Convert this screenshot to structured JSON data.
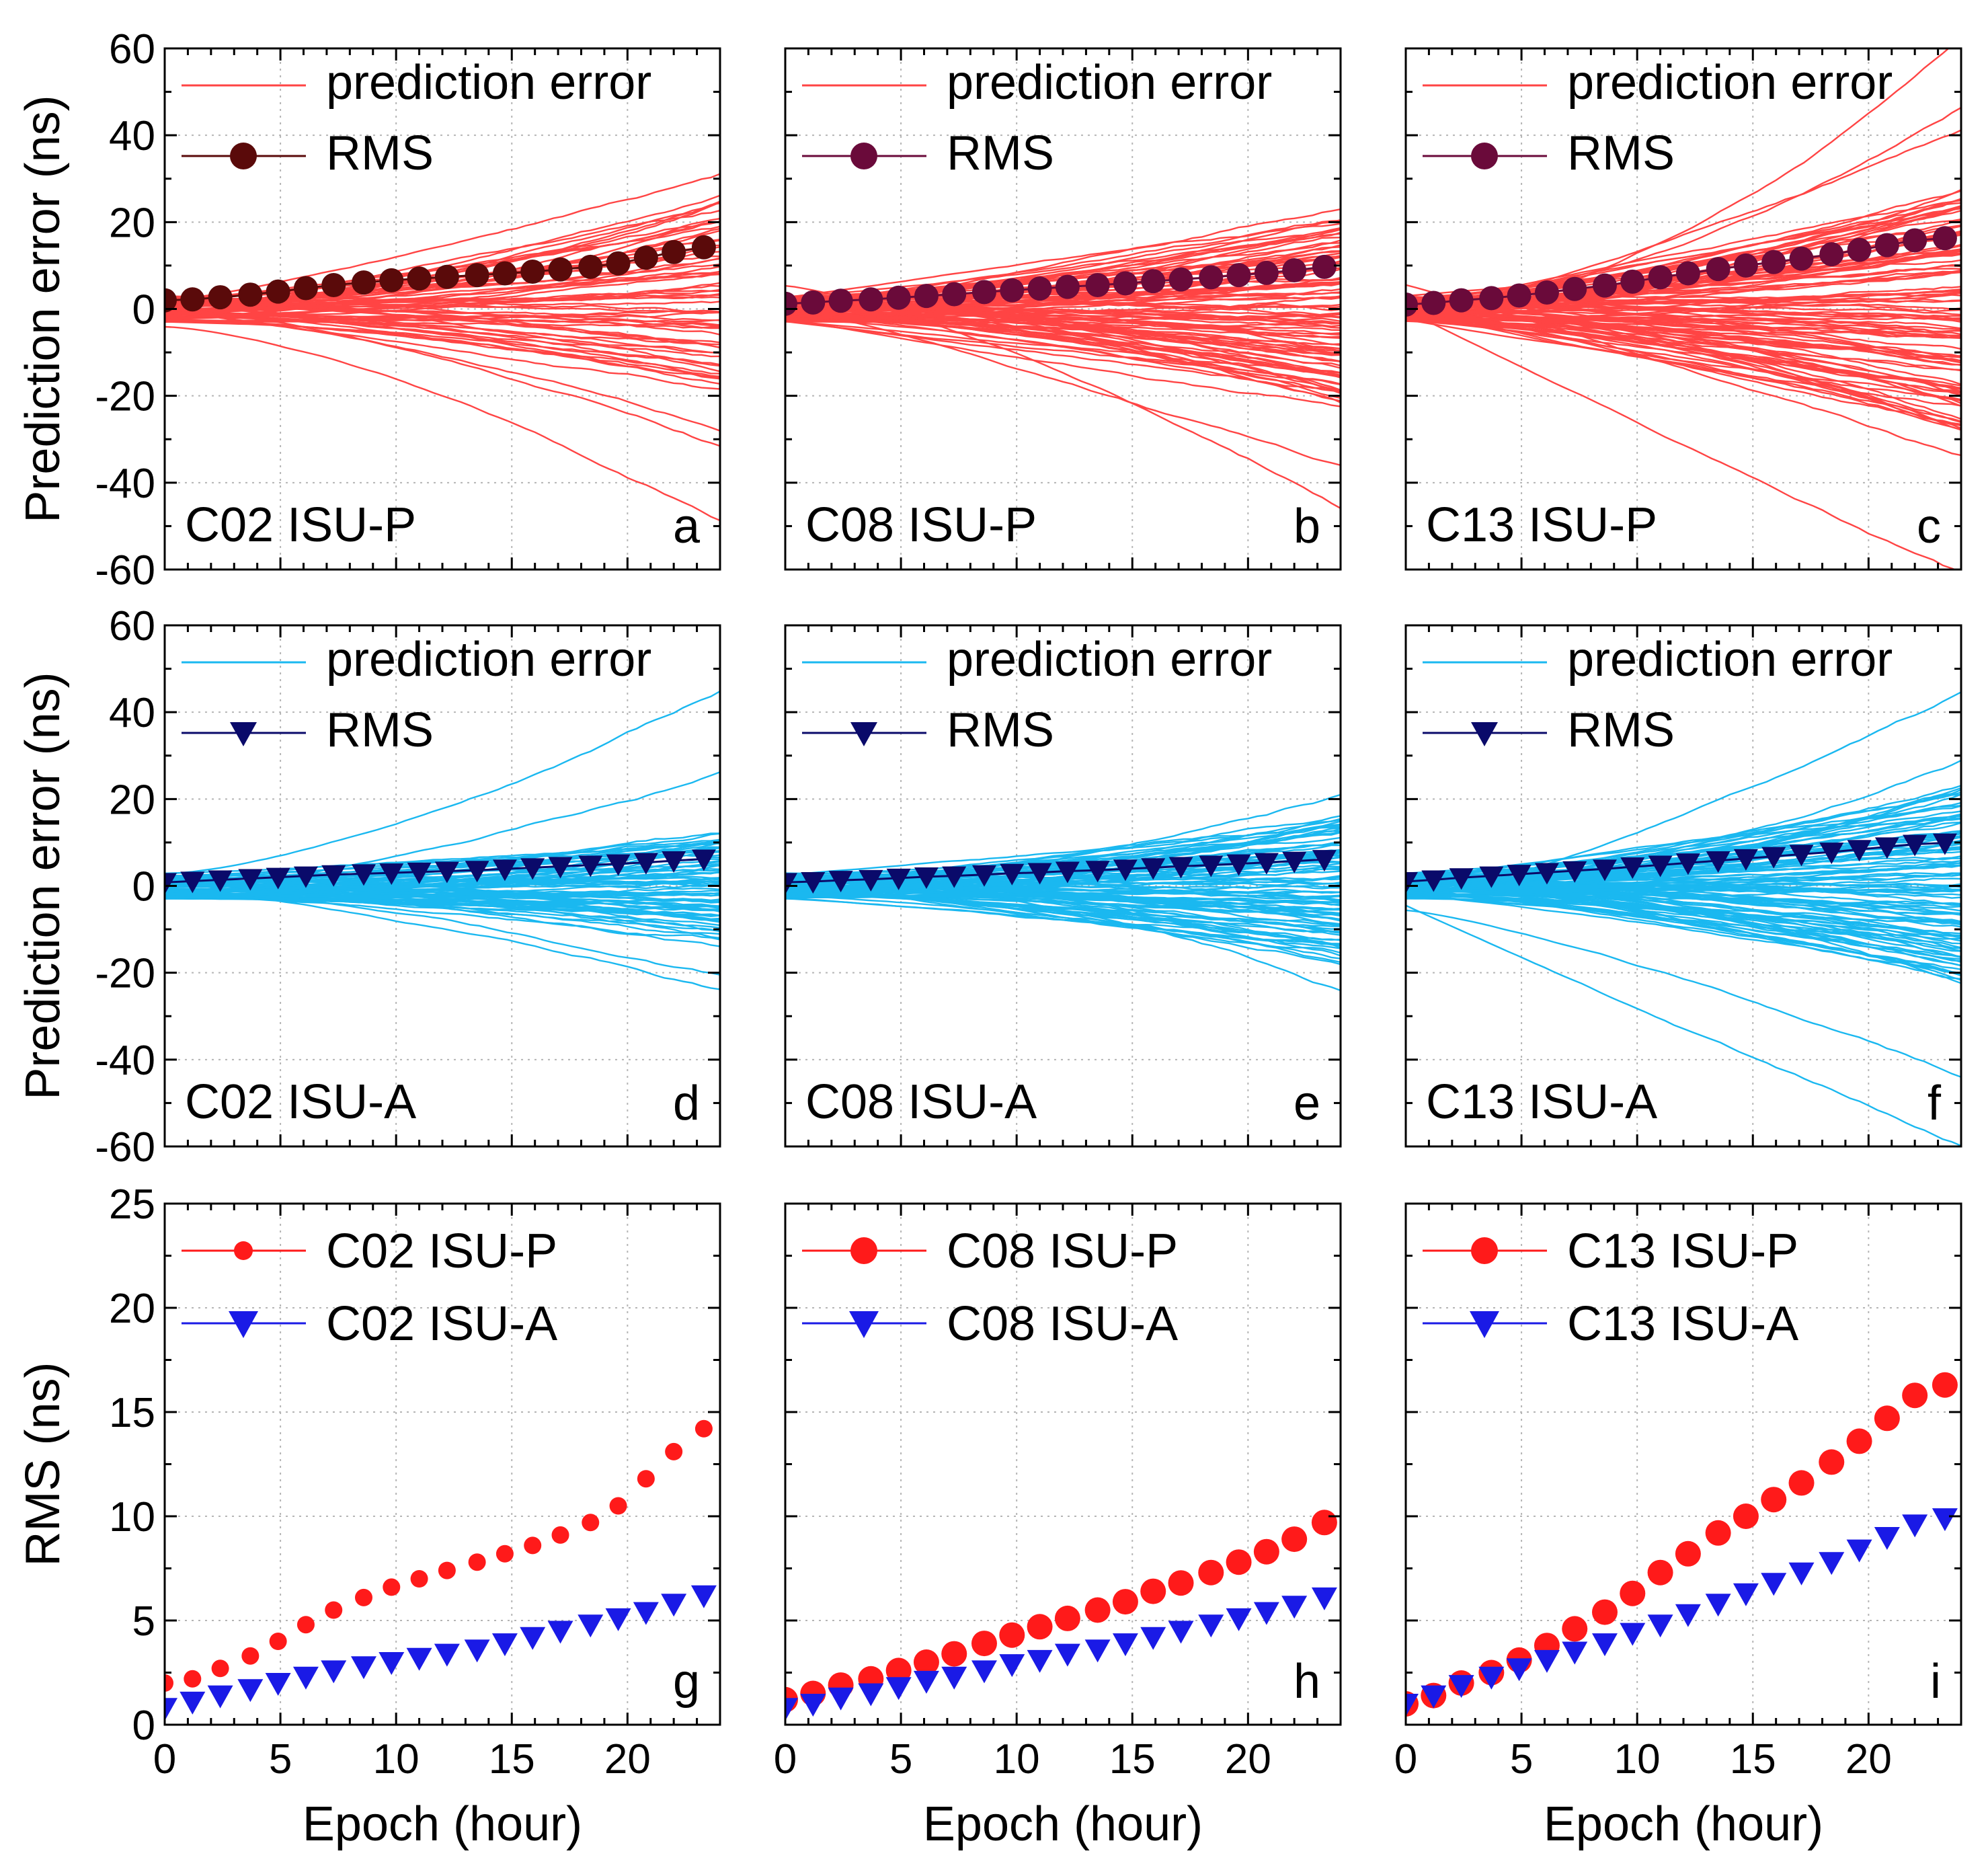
{
  "chart_data": [
    {
      "id": "a",
      "type": "line",
      "panel_letter": "a",
      "label": "C02 ISU-P",
      "ylabel": "Prediction error (ns)",
      "xlabel": "",
      "xlim": [
        0,
        24
      ],
      "ylim": [
        -60,
        60
      ],
      "xticks": [
        "0",
        "5",
        "10",
        "15",
        "20"
      ],
      "yticks": [
        "-60",
        "-40",
        "-20",
        "0",
        "20",
        "40",
        "60"
      ],
      "grid": true,
      "legend_position": "top-left",
      "legend": [
        "prediction error",
        "RMS"
      ],
      "error_color": "#ff4444",
      "rms_color": "#5a0a0a",
      "rms_marker": "circle",
      "error_line_count": 60,
      "error_band_end": [
        -18,
        24
      ],
      "error_outliers_end": [
        -46,
        -31,
        -25,
        29,
        26
      ],
      "rms_x": [
        0,
        1.2,
        2.4,
        3.7,
        4.9,
        6.1,
        7.3,
        8.6,
        9.8,
        11.0,
        12.2,
        13.5,
        14.7,
        15.9,
        17.1,
        18.4,
        19.6,
        20.8,
        22.0,
        23.3
      ],
      "rms_values": [
        2.0,
        2.2,
        2.7,
        3.3,
        4.0,
        4.8,
        5.5,
        6.1,
        6.6,
        7.0,
        7.4,
        7.8,
        8.2,
        8.6,
        9.1,
        9.7,
        10.5,
        11.8,
        13.1,
        14.2
      ]
    },
    {
      "id": "b",
      "type": "line",
      "panel_letter": "b",
      "label": "C08 ISU-P",
      "ylabel": "",
      "xlabel": "",
      "xlim": [
        0,
        24
      ],
      "ylim": [
        -60,
        60
      ],
      "xticks": [
        "0",
        "5",
        "10",
        "15",
        "20"
      ],
      "yticks": [],
      "grid": true,
      "legend_position": "top-left",
      "legend": [
        "prediction error",
        "RMS"
      ],
      "error_color": "#ff4444",
      "rms_color": "#6a0a3a",
      "rms_marker": "circle",
      "error_line_count": 90,
      "error_band_end": [
        -22,
        20
      ],
      "error_outliers_end": [
        -44,
        -37,
        22
      ],
      "rms_x": [
        0,
        1.2,
        2.4,
        3.7,
        4.9,
        6.1,
        7.3,
        8.6,
        9.8,
        11.0,
        12.2,
        13.5,
        14.7,
        15.9,
        17.1,
        18.4,
        19.6,
        20.8,
        22.0,
        23.3
      ],
      "rms_values": [
        1.2,
        1.5,
        1.9,
        2.2,
        2.6,
        3.0,
        3.4,
        3.9,
        4.3,
        4.7,
        5.1,
        5.5,
        5.9,
        6.4,
        6.8,
        7.3,
        7.8,
        8.3,
        8.9,
        9.7
      ]
    },
    {
      "id": "c",
      "type": "line",
      "panel_letter": "c",
      "label": "C13 ISU-P",
      "ylabel": "",
      "xlabel": "",
      "xlim": [
        0,
        24
      ],
      "ylim": [
        -60,
        60
      ],
      "xticks": [
        "0",
        "5",
        "10",
        "15",
        "20"
      ],
      "yticks": [],
      "grid": true,
      "legend_position": "top-left",
      "legend": [
        "prediction error",
        "RMS"
      ],
      "error_color": "#ff4444",
      "rms_color": "#6a0a3a",
      "rms_marker": "circle",
      "error_line_count": 100,
      "error_band_end": [
        -28,
        28
      ],
      "error_outliers_end": [
        -62,
        -34,
        46,
        40,
        62
      ],
      "rms_x": [
        0,
        1.2,
        2.4,
        3.7,
        4.9,
        6.1,
        7.3,
        8.6,
        9.8,
        11.0,
        12.2,
        13.5,
        14.7,
        15.9,
        17.1,
        18.4,
        19.6,
        20.8,
        22.0,
        23.3
      ],
      "rms_values": [
        1.0,
        1.4,
        2.0,
        2.5,
        3.1,
        3.8,
        4.6,
        5.4,
        6.3,
        7.3,
        8.2,
        9.2,
        10.0,
        10.8,
        11.6,
        12.6,
        13.6,
        14.7,
        15.8,
        16.3
      ]
    },
    {
      "id": "d",
      "type": "line",
      "panel_letter": "d",
      "label": "C02 ISU-A",
      "ylabel": "Prediction error (ns)",
      "xlabel": "",
      "xlim": [
        0,
        24
      ],
      "ylim": [
        -60,
        60
      ],
      "xticks": [
        "0",
        "5",
        "10",
        "15",
        "20"
      ],
      "yticks": [
        "-60",
        "-40",
        "-20",
        "0",
        "20",
        "40",
        "60"
      ],
      "grid": true,
      "legend_position": "top-left",
      "legend": [
        "prediction error",
        "RMS"
      ],
      "error_color": "#1ab8f0",
      "rms_color": "#0a0a6a",
      "rms_marker": "triangle-down",
      "error_line_count": 70,
      "error_band_end": [
        -12,
        12
      ],
      "error_outliers_end": [
        -22,
        -19,
        45,
        25
      ],
      "rms_x": [
        0,
        1.2,
        2.4,
        3.7,
        4.9,
        6.1,
        7.3,
        8.6,
        9.8,
        11.0,
        12.2,
        13.5,
        14.7,
        15.9,
        17.1,
        18.4,
        19.6,
        20.8,
        22.0,
        23.3
      ],
      "rms_values": [
        0.8,
        1.1,
        1.4,
        1.7,
        2.0,
        2.3,
        2.6,
        2.8,
        3.0,
        3.2,
        3.4,
        3.6,
        3.9,
        4.2,
        4.5,
        4.8,
        5.1,
        5.4,
        5.8,
        6.2
      ]
    },
    {
      "id": "e",
      "type": "line",
      "panel_letter": "e",
      "label": "C08 ISU-A",
      "ylabel": "",
      "xlabel": "",
      "xlim": [
        0,
        24
      ],
      "ylim": [
        -60,
        60
      ],
      "xticks": [
        "0",
        "5",
        "10",
        "15",
        "20"
      ],
      "yticks": [],
      "grid": true,
      "legend_position": "top-left",
      "legend": [
        "prediction error",
        "RMS"
      ],
      "error_color": "#1ab8f0",
      "rms_color": "#0a0a6a",
      "rms_marker": "triangle-down",
      "error_line_count": 90,
      "error_band_end": [
        -16,
        16
      ],
      "error_outliers_end": [
        -24,
        -18,
        22
      ],
      "rms_x": [
        0,
        1.2,
        2.4,
        3.7,
        4.9,
        6.1,
        7.3,
        8.6,
        9.8,
        11.0,
        12.2,
        13.5,
        14.7,
        15.9,
        17.1,
        18.4,
        19.6,
        20.8,
        22.0,
        23.3
      ],
      "rms_values": [
        0.8,
        1.0,
        1.3,
        1.5,
        1.8,
        2.1,
        2.3,
        2.6,
        2.9,
        3.1,
        3.4,
        3.6,
        3.9,
        4.2,
        4.5,
        4.8,
        5.1,
        5.4,
        5.7,
        6.1
      ]
    },
    {
      "id": "f",
      "type": "line",
      "panel_letter": "f",
      "label": "C13 ISU-A",
      "ylabel": "",
      "xlabel": "",
      "xlim": [
        0,
        24
      ],
      "ylim": [
        -60,
        60
      ],
      "xticks": [
        "0",
        "5",
        "10",
        "15",
        "20"
      ],
      "yticks": [],
      "grid": true,
      "legend_position": "top-left",
      "legend": [
        "prediction error",
        "RMS"
      ],
      "error_color": "#1ab8f0",
      "rms_color": "#0a0a6a",
      "rms_marker": "triangle-down",
      "error_line_count": 100,
      "error_band_end": [
        -22,
        22
      ],
      "error_outliers_end": [
        -60,
        -45,
        44,
        29
      ],
      "rms_x": [
        0,
        1.2,
        2.4,
        3.7,
        4.9,
        6.1,
        7.3,
        8.6,
        9.8,
        11.0,
        12.2,
        13.5,
        14.7,
        15.9,
        17.1,
        18.4,
        19.6,
        20.8,
        22.0,
        23.3
      ],
      "rms_values": [
        1.0,
        1.4,
        1.9,
        2.3,
        2.7,
        3.1,
        3.5,
        3.9,
        4.4,
        4.8,
        5.3,
        5.8,
        6.3,
        6.8,
        7.3,
        7.8,
        8.4,
        9.0,
        9.6,
        9.9
      ]
    },
    {
      "id": "g",
      "type": "scatter",
      "panel_letter": "g",
      "ylabel": "RMS (ns)",
      "xlabel": "Epoch (hour)",
      "xlim": [
        0,
        24
      ],
      "ylim": [
        0,
        25
      ],
      "xticks": [
        "0",
        "5",
        "10",
        "15",
        "20"
      ],
      "yticks": [
        "0",
        "5",
        "10",
        "15",
        "20",
        "25"
      ],
      "grid": true,
      "legend_position": "top-left",
      "series": [
        {
          "name": "C02 ISU-P",
          "color": "#ff1a1a",
          "marker": "circle",
          "x": [
            0,
            1.2,
            2.4,
            3.7,
            4.9,
            6.1,
            7.3,
            8.6,
            9.8,
            11.0,
            12.2,
            13.5,
            14.7,
            15.9,
            17.1,
            18.4,
            19.6,
            20.8,
            22.0,
            23.3
          ],
          "values": [
            2.0,
            2.2,
            2.7,
            3.3,
            4.0,
            4.8,
            5.5,
            6.1,
            6.6,
            7.0,
            7.4,
            7.8,
            8.2,
            8.6,
            9.1,
            9.7,
            10.5,
            11.8,
            13.1,
            14.2
          ]
        },
        {
          "name": "C02 ISU-A",
          "color": "#1a1ae6",
          "marker": "triangle-down",
          "x": [
            0,
            1.2,
            2.4,
            3.7,
            4.9,
            6.1,
            7.3,
            8.6,
            9.8,
            11.0,
            12.2,
            13.5,
            14.7,
            15.9,
            17.1,
            18.4,
            19.6,
            20.8,
            22.0,
            23.3
          ],
          "values": [
            0.8,
            1.1,
            1.4,
            1.7,
            2.0,
            2.3,
            2.6,
            2.8,
            3.0,
            3.2,
            3.4,
            3.6,
            3.9,
            4.2,
            4.5,
            4.8,
            5.1,
            5.4,
            5.8,
            6.2
          ]
        }
      ]
    },
    {
      "id": "h",
      "type": "scatter",
      "panel_letter": "h",
      "ylabel": "",
      "xlabel": "Epoch (hour)",
      "xlim": [
        0,
        24
      ],
      "ylim": [
        0,
        25
      ],
      "xticks": [
        "0",
        "5",
        "10",
        "15",
        "20"
      ],
      "yticks": [],
      "grid": true,
      "legend_position": "top-left",
      "series": [
        {
          "name": "C08 ISU-P",
          "color": "#ff1a1a",
          "marker": "circle",
          "x": [
            0,
            1.2,
            2.4,
            3.7,
            4.9,
            6.1,
            7.3,
            8.6,
            9.8,
            11.0,
            12.2,
            13.5,
            14.7,
            15.9,
            17.1,
            18.4,
            19.6,
            20.8,
            22.0,
            23.3
          ],
          "values": [
            1.2,
            1.5,
            1.9,
            2.2,
            2.6,
            3.0,
            3.4,
            3.9,
            4.3,
            4.7,
            5.1,
            5.5,
            5.9,
            6.4,
            6.8,
            7.3,
            7.8,
            8.3,
            8.9,
            9.7
          ]
        },
        {
          "name": "C08 ISU-A",
          "color": "#1a1ae6",
          "marker": "triangle-down",
          "x": [
            0,
            1.2,
            2.4,
            3.7,
            4.9,
            6.1,
            7.3,
            8.6,
            9.8,
            11.0,
            12.2,
            13.5,
            14.7,
            15.9,
            17.1,
            18.4,
            19.6,
            20.8,
            22.0,
            23.3
          ],
          "values": [
            0.8,
            1.0,
            1.3,
            1.5,
            1.8,
            2.1,
            2.3,
            2.6,
            2.9,
            3.1,
            3.4,
            3.6,
            3.9,
            4.2,
            4.5,
            4.8,
            5.1,
            5.4,
            5.7,
            6.1
          ]
        }
      ]
    },
    {
      "id": "i",
      "type": "scatter",
      "panel_letter": "i",
      "ylabel": "",
      "xlabel": "Epoch (hour)",
      "xlim": [
        0,
        24
      ],
      "ylim": [
        0,
        25
      ],
      "xticks": [
        "0",
        "5",
        "10",
        "15",
        "20"
      ],
      "yticks": [],
      "grid": true,
      "legend_position": "top-left",
      "series": [
        {
          "name": "C13 ISU-P",
          "color": "#ff1a1a",
          "marker": "circle",
          "x": [
            0,
            1.2,
            2.4,
            3.7,
            4.9,
            6.1,
            7.3,
            8.6,
            9.8,
            11.0,
            12.2,
            13.5,
            14.7,
            15.9,
            17.1,
            18.4,
            19.6,
            20.8,
            22.0,
            23.3
          ],
          "values": [
            1.0,
            1.4,
            2.0,
            2.5,
            3.1,
            3.8,
            4.6,
            5.4,
            6.3,
            7.3,
            8.2,
            9.2,
            10.0,
            10.8,
            11.6,
            12.6,
            13.6,
            14.7,
            15.8,
            16.3
          ]
        },
        {
          "name": "C13 ISU-A",
          "color": "#1a1ae6",
          "marker": "triangle-down",
          "x": [
            0,
            1.2,
            2.4,
            3.7,
            4.9,
            6.1,
            7.3,
            8.6,
            9.8,
            11.0,
            12.2,
            13.5,
            14.7,
            15.9,
            17.1,
            18.4,
            19.6,
            20.8,
            22.0,
            23.3
          ],
          "values": [
            1.0,
            1.4,
            1.9,
            2.3,
            2.7,
            3.1,
            3.5,
            3.9,
            4.4,
            4.8,
            5.3,
            5.8,
            6.3,
            6.8,
            7.3,
            7.8,
            8.4,
            9.0,
            9.6,
            9.9
          ]
        }
      ]
    }
  ]
}
